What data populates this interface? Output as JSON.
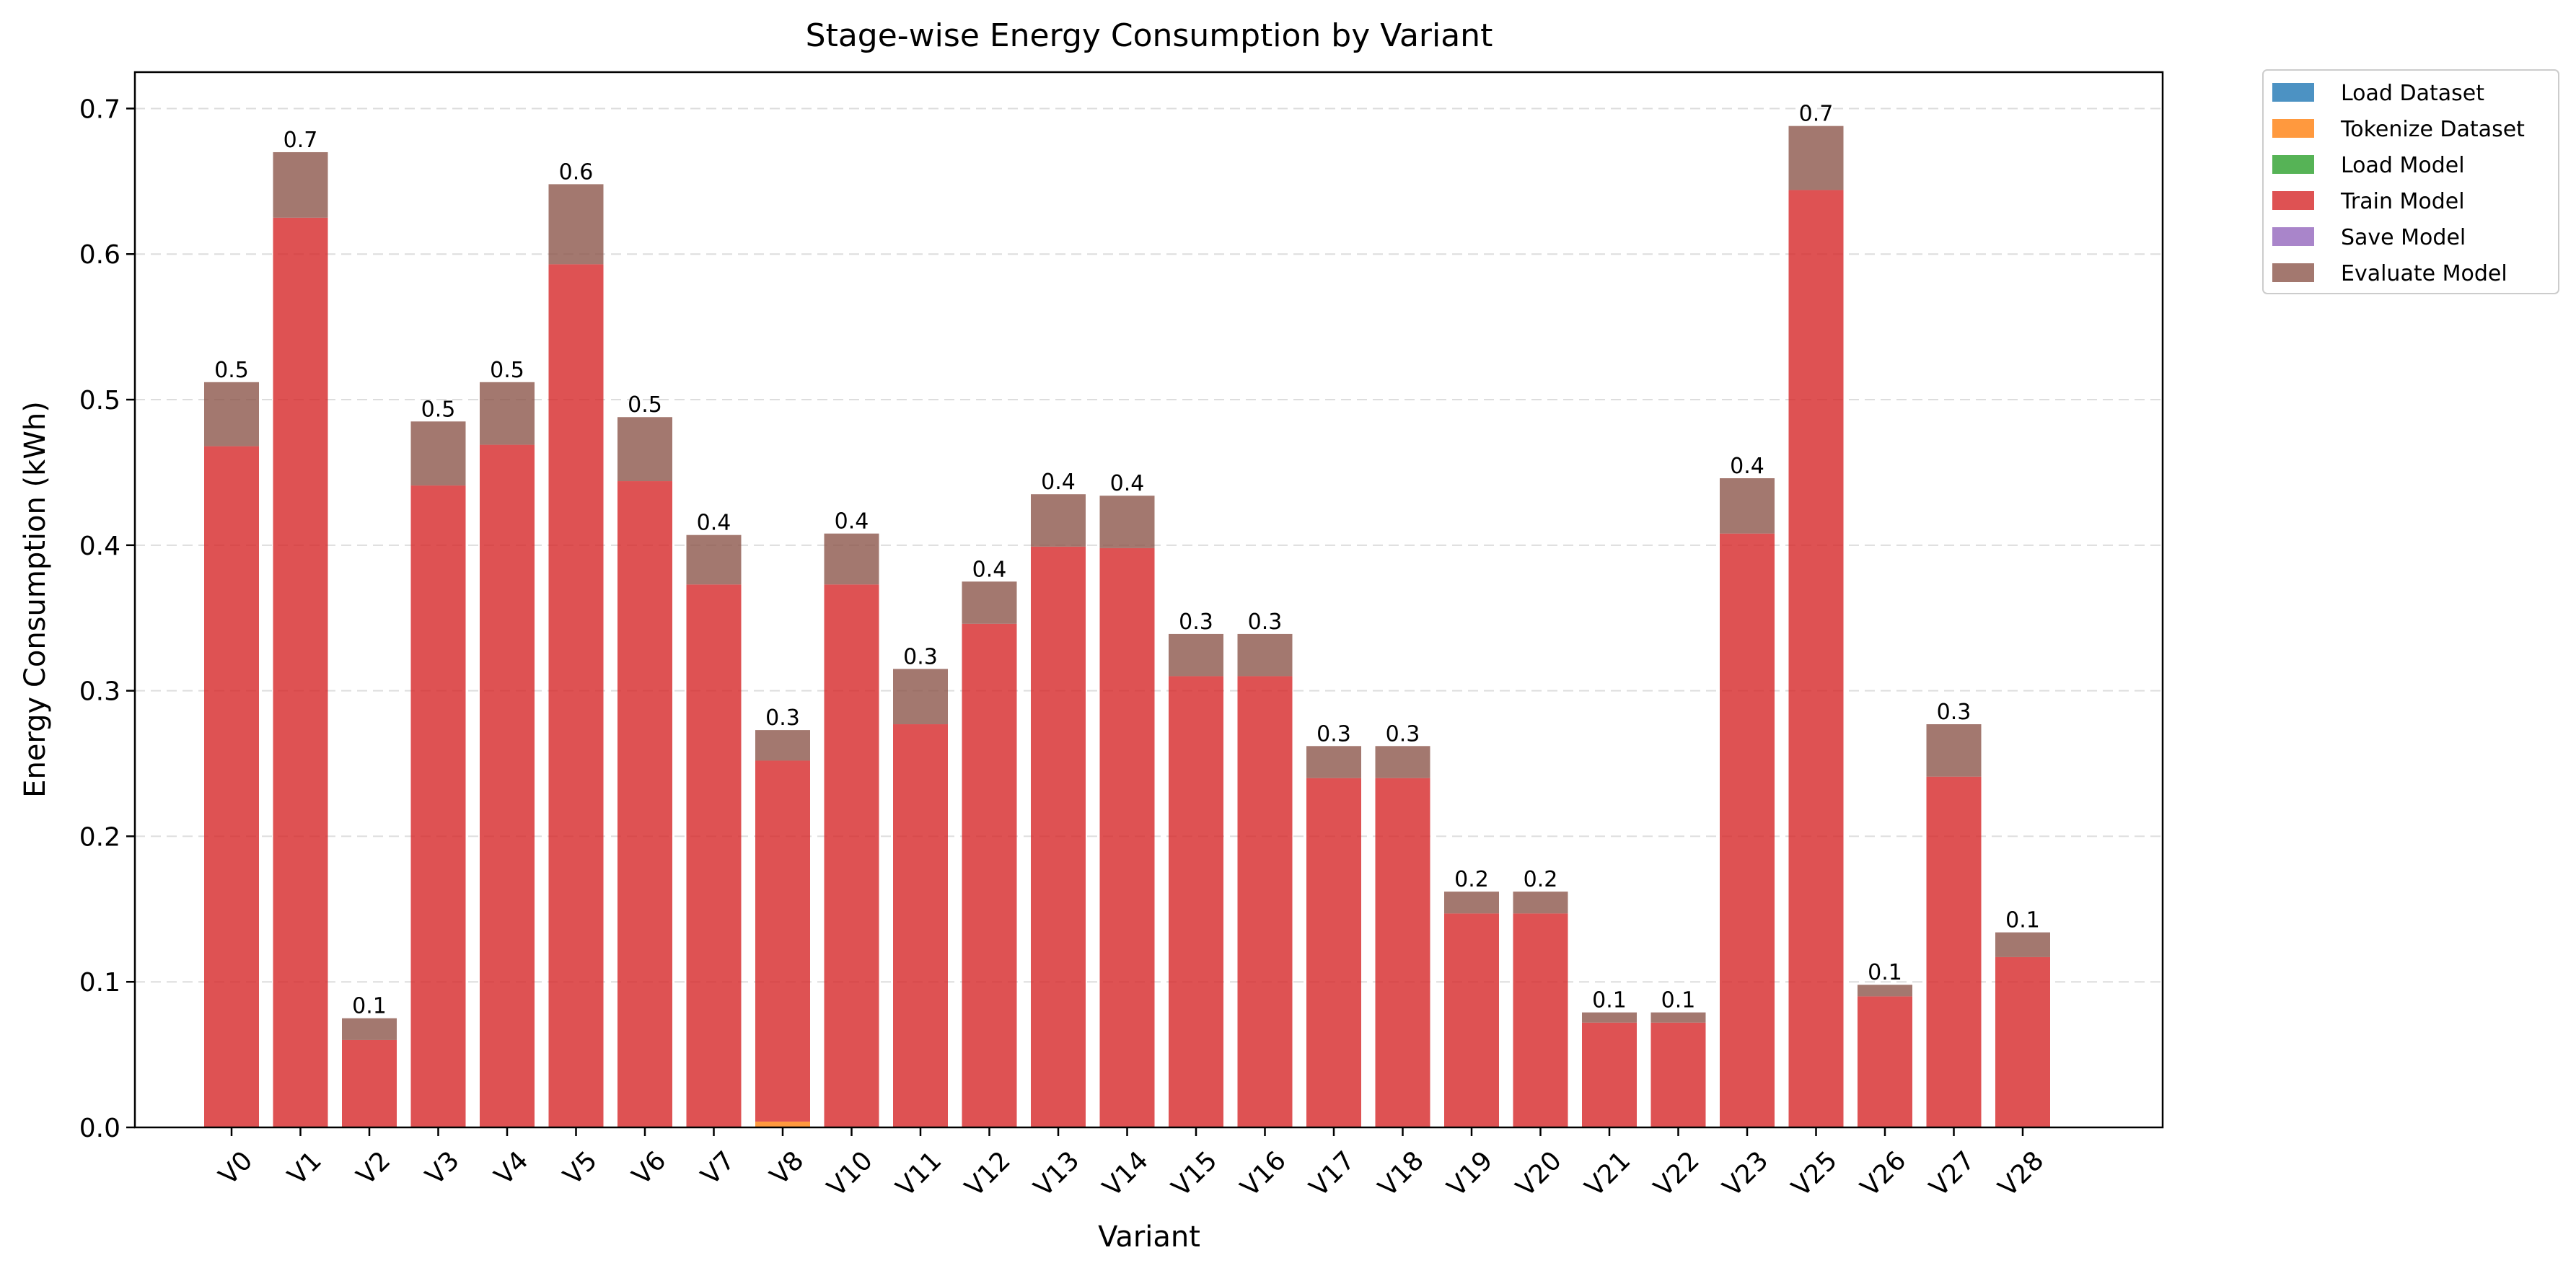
{
  "chart_data": {
    "type": "bar",
    "stacked": true,
    "title": "Stage-wise Energy Consumption by Variant",
    "xlabel": "Variant",
    "ylabel": "Energy Consumption (kWh)",
    "ylim": [
      0,
      0.725
    ],
    "yticks": [
      "0.0",
      "0.1",
      "0.2",
      "0.3",
      "0.4",
      "0.5",
      "0.6",
      "0.7"
    ],
    "grid": "horizontal dashed",
    "legend_position": "outside top-right",
    "categories": [
      "V0",
      "V1",
      "V2",
      "V3",
      "V4",
      "V5",
      "V6",
      "V7",
      "V8",
      "V10",
      "V11",
      "V12",
      "V13",
      "V14",
      "V15",
      "V16",
      "V17",
      "V18",
      "V19",
      "V20",
      "V21",
      "V22",
      "V23",
      "V25",
      "V26",
      "V27",
      "V28"
    ],
    "series": [
      {
        "name": "Load Dataset",
        "color": "#1f77b4",
        "values": [
          0,
          0,
          0,
          0,
          0,
          0,
          0,
          0,
          0,
          0,
          0,
          0,
          0,
          0,
          0,
          0,
          0,
          0,
          0,
          0,
          0,
          0,
          0,
          0,
          0,
          0,
          0
        ]
      },
      {
        "name": "Tokenize Dataset",
        "color": "#ff7f0e",
        "values": [
          0,
          0,
          0,
          0,
          0,
          0,
          0,
          0,
          0.004,
          0,
          0,
          0,
          0,
          0,
          0,
          0,
          0,
          0,
          0,
          0,
          0,
          0,
          0,
          0,
          0,
          0,
          0
        ]
      },
      {
        "name": "Load Model",
        "color": "#2ca02c",
        "values": [
          0,
          0,
          0,
          0,
          0,
          0,
          0,
          0,
          0,
          0,
          0,
          0,
          0,
          0,
          0,
          0,
          0,
          0,
          0,
          0,
          0,
          0,
          0,
          0,
          0,
          0,
          0
        ]
      },
      {
        "name": "Train Model",
        "color": "#d62728",
        "values": [
          0.468,
          0.625,
          0.06,
          0.441,
          0.469,
          0.593,
          0.444,
          0.373,
          0.248,
          0.373,
          0.277,
          0.346,
          0.399,
          0.398,
          0.31,
          0.31,
          0.24,
          0.24,
          0.147,
          0.147,
          0.072,
          0.072,
          0.408,
          0.644,
          0.09,
          0.241,
          0.117
        ]
      },
      {
        "name": "Save Model",
        "color": "#9467bd",
        "values": [
          0,
          0,
          0,
          0,
          0,
          0,
          0,
          0,
          0,
          0,
          0,
          0,
          0,
          0,
          0,
          0,
          0,
          0,
          0,
          0,
          0,
          0,
          0,
          0,
          0,
          0,
          0
        ]
      },
      {
        "name": "Evaluate Model",
        "color": "#8c564b",
        "values": [
          0.044,
          0.045,
          0.015,
          0.044,
          0.043,
          0.055,
          0.044,
          0.034,
          0.021,
          0.035,
          0.038,
          0.029,
          0.036,
          0.036,
          0.029,
          0.029,
          0.022,
          0.022,
          0.015,
          0.015,
          0.007,
          0.007,
          0.038,
          0.044,
          0.008,
          0.036,
          0.017
        ]
      }
    ],
    "bar_labels": [
      "0.5",
      "0.7",
      "0.1",
      "0.5",
      "0.5",
      "0.6",
      "0.5",
      "0.4",
      "0.3",
      "0.4",
      "0.3",
      "0.4",
      "0.4",
      "0.4",
      "0.3",
      "0.3",
      "0.3",
      "0.3",
      "0.2",
      "0.2",
      "0.1",
      "0.1",
      "0.4",
      "0.7",
      "0.1",
      "0.3",
      "0.1"
    ]
  }
}
